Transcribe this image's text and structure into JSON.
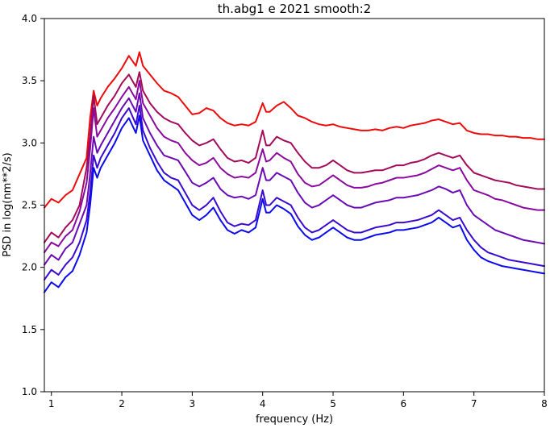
{
  "chart_data": {
    "type": "line",
    "title": "th.abg1 e 2021 smooth:2",
    "xlabel": "frequency (Hz)",
    "ylabel": "PSD in log(nm**2/s)",
    "xlim": [
      0.9,
      8.0
    ],
    "ylim": [
      1.0,
      4.0
    ],
    "xticks": [
      1,
      2,
      3,
      4,
      5,
      6,
      7,
      8
    ],
    "xtick_labels": [
      "1",
      "2",
      "3",
      "4",
      "5",
      "6",
      "7",
      "8"
    ],
    "yticks": [
      1.0,
      1.5,
      2.0,
      2.5,
      3.0,
      3.5,
      4.0
    ],
    "ytick_labels": [
      "1.0",
      "1.5",
      "2.0",
      "2.5",
      "3.0",
      "3.5",
      "4.0"
    ],
    "grid": false,
    "x": [
      0.9,
      1.0,
      1.1,
      1.2,
      1.3,
      1.4,
      1.5,
      1.55,
      1.6,
      1.65,
      1.7,
      1.8,
      1.9,
      2.0,
      2.1,
      2.2,
      2.25,
      2.3,
      2.4,
      2.5,
      2.6,
      2.7,
      2.8,
      2.9,
      3.0,
      3.1,
      3.2,
      3.3,
      3.4,
      3.5,
      3.6,
      3.7,
      3.8,
      3.9,
      4.0,
      4.05,
      4.1,
      4.2,
      4.3,
      4.4,
      4.5,
      4.6,
      4.7,
      4.8,
      4.9,
      5.0,
      5.1,
      5.2,
      5.3,
      5.4,
      5.5,
      5.6,
      5.7,
      5.8,
      5.9,
      6.0,
      6.1,
      6.2,
      6.3,
      6.4,
      6.5,
      6.6,
      6.7,
      6.8,
      6.9,
      7.0,
      7.1,
      7.2,
      7.3,
      7.4,
      7.5,
      7.6,
      7.7,
      7.8,
      7.9,
      8.0
    ],
    "series": [
      {
        "color": "#ee0a0a",
        "values": [
          2.48,
          2.55,
          2.52,
          2.58,
          2.62,
          2.75,
          2.88,
          3.2,
          3.42,
          3.3,
          3.36,
          3.45,
          3.52,
          3.6,
          3.7,
          3.62,
          3.73,
          3.62,
          3.55,
          3.48,
          3.42,
          3.4,
          3.37,
          3.3,
          3.23,
          3.24,
          3.28,
          3.26,
          3.2,
          3.16,
          3.14,
          3.15,
          3.14,
          3.17,
          3.32,
          3.25,
          3.25,
          3.3,
          3.33,
          3.28,
          3.22,
          3.2,
          3.17,
          3.15,
          3.14,
          3.15,
          3.13,
          3.12,
          3.11,
          3.1,
          3.1,
          3.11,
          3.1,
          3.12,
          3.13,
          3.12,
          3.14,
          3.15,
          3.16,
          3.18,
          3.19,
          3.17,
          3.15,
          3.16,
          3.1,
          3.08,
          3.07,
          3.07,
          3.06,
          3.06,
          3.05,
          3.05,
          3.04,
          3.04,
          3.03,
          3.03
        ]
      },
      {
        "color": "#a30a59",
        "values": [
          2.2,
          2.28,
          2.24,
          2.32,
          2.38,
          2.5,
          2.8,
          3.05,
          3.38,
          3.15,
          3.2,
          3.3,
          3.38,
          3.48,
          3.55,
          3.45,
          3.57,
          3.42,
          3.32,
          3.25,
          3.2,
          3.17,
          3.15,
          3.08,
          3.02,
          2.98,
          3.0,
          3.03,
          2.95,
          2.88,
          2.85,
          2.86,
          2.84,
          2.88,
          3.1,
          2.98,
          2.98,
          3.05,
          3.02,
          3.0,
          2.92,
          2.85,
          2.8,
          2.8,
          2.82,
          2.86,
          2.82,
          2.78,
          2.76,
          2.76,
          2.77,
          2.78,
          2.78,
          2.8,
          2.82,
          2.82,
          2.84,
          2.85,
          2.87,
          2.9,
          2.92,
          2.9,
          2.88,
          2.9,
          2.82,
          2.76,
          2.74,
          2.72,
          2.7,
          2.69,
          2.68,
          2.66,
          2.65,
          2.64,
          2.63,
          2.63
        ]
      },
      {
        "color": "#8a0aa0",
        "values": [
          2.12,
          2.2,
          2.17,
          2.25,
          2.3,
          2.45,
          2.68,
          2.95,
          3.28,
          3.05,
          3.1,
          3.2,
          3.28,
          3.37,
          3.45,
          3.35,
          3.5,
          3.32,
          3.22,
          3.12,
          3.05,
          3.02,
          3.0,
          2.92,
          2.86,
          2.82,
          2.84,
          2.88,
          2.8,
          2.75,
          2.72,
          2.73,
          2.72,
          2.76,
          2.95,
          2.85,
          2.86,
          2.92,
          2.88,
          2.85,
          2.75,
          2.68,
          2.65,
          2.66,
          2.7,
          2.74,
          2.7,
          2.66,
          2.64,
          2.64,
          2.65,
          2.67,
          2.68,
          2.7,
          2.72,
          2.72,
          2.73,
          2.74,
          2.76,
          2.79,
          2.82,
          2.8,
          2.78,
          2.8,
          2.7,
          2.62,
          2.6,
          2.58,
          2.55,
          2.54,
          2.52,
          2.5,
          2.48,
          2.47,
          2.46,
          2.46
        ]
      },
      {
        "color": "#6a0ab5",
        "values": [
          2.02,
          2.1,
          2.06,
          2.15,
          2.2,
          2.35,
          2.5,
          2.75,
          3.05,
          2.92,
          2.98,
          3.08,
          3.18,
          3.28,
          3.36,
          3.25,
          3.4,
          3.2,
          3.08,
          2.98,
          2.9,
          2.88,
          2.86,
          2.77,
          2.68,
          2.65,
          2.68,
          2.72,
          2.63,
          2.58,
          2.56,
          2.57,
          2.55,
          2.58,
          2.8,
          2.7,
          2.7,
          2.76,
          2.73,
          2.7,
          2.6,
          2.52,
          2.48,
          2.5,
          2.54,
          2.58,
          2.54,
          2.5,
          2.48,
          2.48,
          2.5,
          2.52,
          2.53,
          2.54,
          2.56,
          2.56,
          2.57,
          2.58,
          2.6,
          2.62,
          2.65,
          2.63,
          2.6,
          2.62,
          2.5,
          2.42,
          2.38,
          2.34,
          2.3,
          2.28,
          2.26,
          2.24,
          2.22,
          2.21,
          2.2,
          2.19
        ]
      },
      {
        "color": "#3a0ad0",
        "values": [
          1.9,
          1.98,
          1.94,
          2.02,
          2.08,
          2.2,
          2.38,
          2.6,
          2.9,
          2.8,
          2.88,
          2.98,
          3.08,
          3.2,
          3.28,
          3.15,
          3.3,
          3.1,
          2.96,
          2.85,
          2.76,
          2.72,
          2.7,
          2.6,
          2.5,
          2.46,
          2.5,
          2.56,
          2.45,
          2.36,
          2.33,
          2.35,
          2.34,
          2.38,
          2.62,
          2.5,
          2.5,
          2.56,
          2.53,
          2.5,
          2.4,
          2.32,
          2.28,
          2.3,
          2.34,
          2.38,
          2.34,
          2.3,
          2.28,
          2.28,
          2.3,
          2.32,
          2.33,
          2.34,
          2.36,
          2.36,
          2.37,
          2.38,
          2.4,
          2.42,
          2.46,
          2.42,
          2.38,
          2.4,
          2.3,
          2.22,
          2.16,
          2.12,
          2.1,
          2.08,
          2.06,
          2.05,
          2.04,
          2.03,
          2.02,
          2.01
        ]
      },
      {
        "color": "#0a0aee",
        "values": [
          1.8,
          1.88,
          1.84,
          1.92,
          1.97,
          2.1,
          2.28,
          2.5,
          2.8,
          2.72,
          2.8,
          2.9,
          3.0,
          3.12,
          3.2,
          3.08,
          3.22,
          3.02,
          2.9,
          2.78,
          2.7,
          2.66,
          2.62,
          2.52,
          2.42,
          2.38,
          2.42,
          2.48,
          2.38,
          2.3,
          2.27,
          2.3,
          2.28,
          2.32,
          2.55,
          2.44,
          2.44,
          2.5,
          2.47,
          2.43,
          2.33,
          2.26,
          2.22,
          2.24,
          2.28,
          2.32,
          2.28,
          2.24,
          2.22,
          2.22,
          2.24,
          2.26,
          2.27,
          2.28,
          2.3,
          2.3,
          2.31,
          2.32,
          2.34,
          2.36,
          2.4,
          2.36,
          2.32,
          2.34,
          2.22,
          2.14,
          2.08,
          2.05,
          2.03,
          2.01,
          2.0,
          1.99,
          1.98,
          1.97,
          1.96,
          1.95
        ]
      }
    ]
  }
}
